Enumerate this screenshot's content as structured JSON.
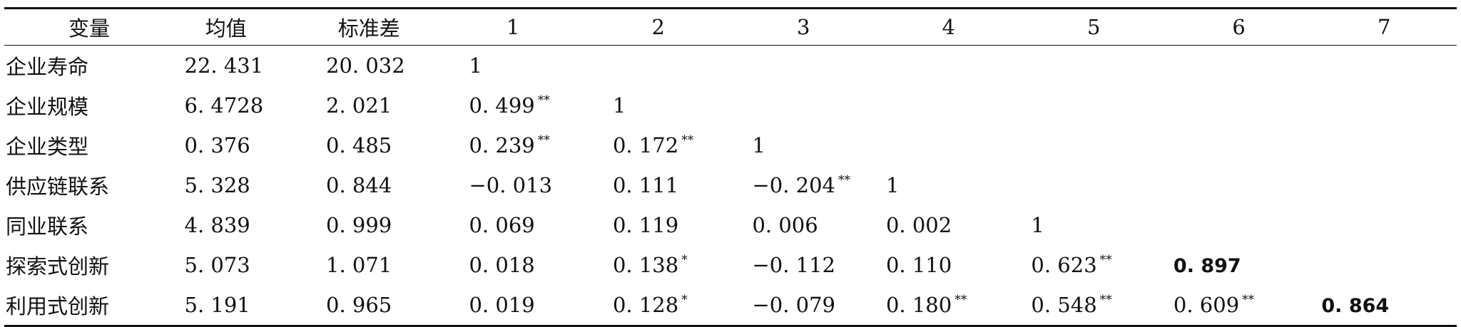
{
  "headers": [
    "变量",
    "均值",
    "标准差",
    "1",
    "2",
    "3",
    "4",
    "5",
    "6",
    "7"
  ],
  "rows": [
    {
      "label": "企业寿命",
      "mean": "22. 431",
      "sd": "20. 032",
      "cells": [
        {
          "v": "1",
          "sig": ""
        },
        {
          "v": "",
          "sig": ""
        },
        {
          "v": "",
          "sig": ""
        },
        {
          "v": "",
          "sig": ""
        },
        {
          "v": "",
          "sig": ""
        },
        {
          "v": "",
          "sig": ""
        },
        {
          "v": "",
          "sig": ""
        }
      ]
    },
    {
      "label": "企业规模",
      "mean": "6. 4728",
      "sd": "2. 021",
      "cells": [
        {
          "v": "0. 499",
          "sig": "**"
        },
        {
          "v": "1",
          "sig": ""
        },
        {
          "v": "",
          "sig": ""
        },
        {
          "v": "",
          "sig": ""
        },
        {
          "v": "",
          "sig": ""
        },
        {
          "v": "",
          "sig": ""
        },
        {
          "v": "",
          "sig": ""
        }
      ]
    },
    {
      "label": "企业类型",
      "mean": "0. 376",
      "sd": "0. 485",
      "cells": [
        {
          "v": "0. 239",
          "sig": "**"
        },
        {
          "v": "0. 172",
          "sig": "**"
        },
        {
          "v": "1",
          "sig": ""
        },
        {
          "v": "",
          "sig": ""
        },
        {
          "v": "",
          "sig": ""
        },
        {
          "v": "",
          "sig": ""
        },
        {
          "v": "",
          "sig": ""
        }
      ]
    },
    {
      "label": "供应链联系",
      "mean": "5. 328",
      "sd": "0. 844",
      "cells": [
        {
          "v": "−0. 013",
          "sig": ""
        },
        {
          "v": "0. 111",
          "sig": ""
        },
        {
          "v": "−0. 204",
          "sig": "**"
        },
        {
          "v": "1",
          "sig": ""
        },
        {
          "v": "",
          "sig": ""
        },
        {
          "v": "",
          "sig": ""
        },
        {
          "v": "",
          "sig": ""
        }
      ]
    },
    {
      "label": "同业联系",
      "mean": "4. 839",
      "sd": "0. 999",
      "cells": [
        {
          "v": "0. 069",
          "sig": ""
        },
        {
          "v": "0. 119",
          "sig": ""
        },
        {
          "v": "0. 006",
          "sig": ""
        },
        {
          "v": "0. 002",
          "sig": ""
        },
        {
          "v": "1",
          "sig": ""
        },
        {
          "v": "",
          "sig": ""
        },
        {
          "v": "",
          "sig": ""
        }
      ]
    },
    {
      "label": "探索式创新",
      "mean": "5. 073",
      "sd": "1. 071",
      "cells": [
        {
          "v": "0. 018",
          "sig": ""
        },
        {
          "v": "0. 138",
          "sig": "*"
        },
        {
          "v": "−0. 112",
          "sig": ""
        },
        {
          "v": "0. 110",
          "sig": ""
        },
        {
          "v": "0. 623",
          "sig": "**"
        },
        {
          "v": "0. 897",
          "sig": "",
          "bold": true
        },
        {
          "v": "",
          "sig": ""
        }
      ]
    },
    {
      "label": "利用式创新",
      "mean": "5. 191",
      "sd": "0. 965",
      "cells": [
        {
          "v": "0. 019",
          "sig": ""
        },
        {
          "v": "0. 128",
          "sig": "*"
        },
        {
          "v": "−0. 079",
          "sig": ""
        },
        {
          "v": "0. 180",
          "sig": "**"
        },
        {
          "v": "0. 548",
          "sig": "**"
        },
        {
          "v": "0. 609",
          "sig": "**"
        },
        {
          "v": "0. 864",
          "sig": "",
          "bold": true
        }
      ]
    }
  ]
}
